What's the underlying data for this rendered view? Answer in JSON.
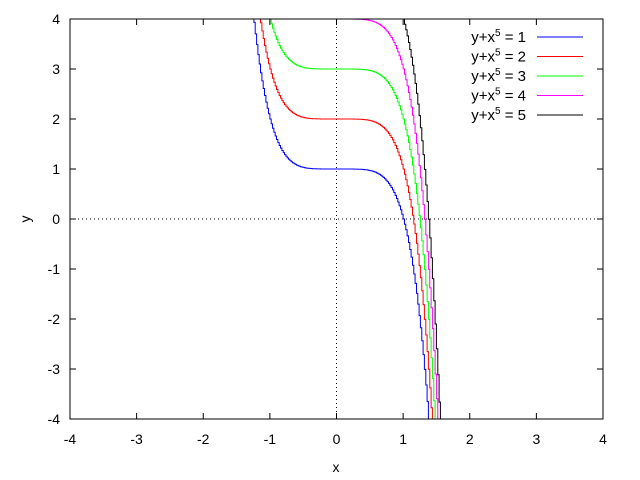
{
  "chart_data": {
    "type": "line",
    "xlabel": "x",
    "ylabel": "y",
    "xlim": [
      -4,
      4
    ],
    "ylim": [
      -4,
      4
    ],
    "xticks": [
      "-4",
      "-3",
      "-2",
      "-1",
      "0",
      "1",
      "2",
      "3",
      "4"
    ],
    "yticks": [
      "-4",
      "-3",
      "-2",
      "-1",
      "0",
      "1",
      "2",
      "3",
      "4"
    ],
    "zero_axes": "dotted",
    "legend_position": "top-right",
    "series": [
      {
        "name": "y+x5 = 1",
        "c": 1,
        "color": "#0000ff",
        "legend": {
          "pre": "y+x",
          "sup": "5",
          "post": " = 1"
        }
      },
      {
        "name": "y+x5 = 2",
        "c": 2,
        "color": "#ff0000",
        "legend": {
          "pre": "y+x",
          "sup": "5",
          "post": " = 2"
        }
      },
      {
        "name": "y+x5 = 3",
        "c": 3,
        "color": "#00ff00",
        "legend": {
          "pre": "y+x",
          "sup": "5",
          "post": " = 3"
        }
      },
      {
        "name": "y+x5 = 4",
        "c": 4,
        "color": "#ff00ff",
        "legend": {
          "pre": "y+x",
          "sup": "5",
          "post": " = 4"
        }
      },
      {
        "name": "y+x5 = 5",
        "c": 5,
        "color": "#000000",
        "legend": {
          "pre": "y+x",
          "sup": "5",
          "post": " = 5"
        }
      }
    ]
  }
}
